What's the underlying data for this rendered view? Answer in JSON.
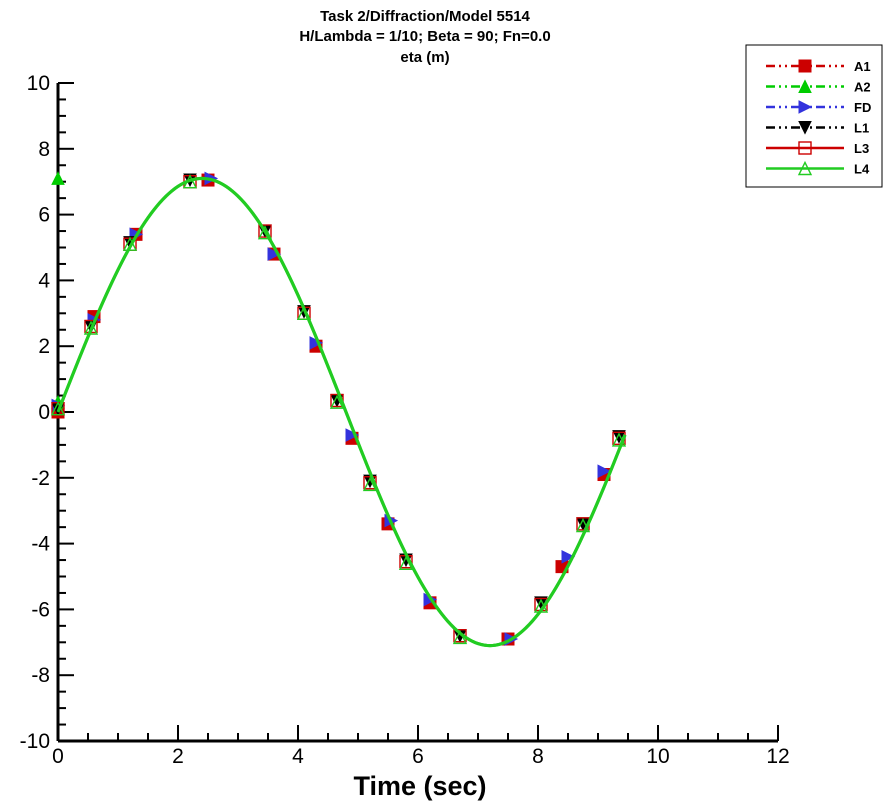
{
  "chart_data": {
    "type": "line",
    "title_lines": [
      "Task 2/Diffraction/Model 5514",
      "H/Lambda = 1/10; Beta =  90; Fn=0.0",
      "eta (m)"
    ],
    "xlabel": "Time (sec)",
    "ylabel": "",
    "xlim": [
      0,
      12
    ],
    "ylim": [
      -10,
      10
    ],
    "xticks": [
      0,
      2,
      4,
      6,
      8,
      10,
      12
    ],
    "yticks": [
      -10,
      -8,
      -6,
      -4,
      -2,
      0,
      2,
      4,
      6,
      8,
      10
    ],
    "grid": false,
    "legend_position": "top-right",
    "curve": {
      "amplitude": 7.1,
      "period": 9.6,
      "x_start": 0,
      "x_end": 9.45
    },
    "series": [
      {
        "name": "A1",
        "color": "#cc0000",
        "line": "dashdotdot",
        "marker": "square-filled",
        "x": [
          0.0,
          0.6,
          1.3,
          2.5,
          3.6,
          4.3,
          4.9,
          5.5,
          6.2,
          7.5,
          8.4,
          9.1
        ],
        "y": [
          0.0,
          2.9,
          5.4,
          7.05,
          4.8,
          2.0,
          -0.8,
          -3.4,
          -5.8,
          -6.9,
          -4.7,
          -1.9
        ]
      },
      {
        "name": "A2",
        "color": "#00cc00",
        "line": "dashdotdot",
        "marker": "triangle-up-filled",
        "x": [
          0.0,
          0.0
        ],
        "y": [
          7.1,
          0.3
        ]
      },
      {
        "name": "FD",
        "color": "#3333dd",
        "line": "dashdotdot",
        "marker": "triangle-right-filled",
        "x": [
          0.0,
          0.6,
          1.3,
          2.55,
          3.6,
          4.3,
          4.9,
          5.55,
          6.2,
          7.55,
          8.5,
          9.1
        ],
        "y": [
          0.2,
          2.8,
          5.4,
          7.1,
          4.8,
          2.1,
          -0.7,
          -3.3,
          -5.7,
          -6.9,
          -4.4,
          -1.8
        ]
      },
      {
        "name": "L1",
        "color": "#000000",
        "line": "dashdotdot",
        "marker": "triangle-down-filled",
        "x": [
          0.0,
          0.55,
          1.2,
          2.2,
          3.45,
          4.1,
          4.65,
          5.2,
          5.8,
          6.7,
          8.05,
          8.75,
          9.35
        ],
        "y": [
          0.1,
          2.6,
          5.15,
          7.05,
          5.5,
          3.05,
          0.35,
          -2.1,
          -4.5,
          -6.8,
          -5.8,
          -3.4,
          -0.75
        ]
      },
      {
        "name": "L3",
        "color": "#cc0000",
        "line": "solid",
        "marker": "square-open",
        "x": [
          0.0,
          0.55,
          1.2,
          2.2,
          3.45,
          4.1,
          4.65,
          5.2,
          5.8,
          6.7,
          8.05,
          8.75,
          9.35
        ],
        "y": [
          0.1,
          2.6,
          5.1,
          7.0,
          5.5,
          3.0,
          0.35,
          -2.15,
          -4.55,
          -6.8,
          -5.85,
          -3.4,
          -0.8
        ]
      },
      {
        "name": "L4",
        "color": "#22cc22",
        "line": "solid",
        "marker": "triangle-up-open",
        "x": [
          0.0,
          0.55,
          1.2,
          2.2,
          3.45,
          4.1,
          4.65,
          5.2,
          5.8,
          6.7,
          8.05,
          8.75,
          9.35
        ],
        "y": [
          0.1,
          2.55,
          5.1,
          7.0,
          5.45,
          3.0,
          0.3,
          -2.2,
          -4.6,
          -6.85,
          -5.9,
          -3.45,
          -0.85
        ]
      }
    ]
  }
}
